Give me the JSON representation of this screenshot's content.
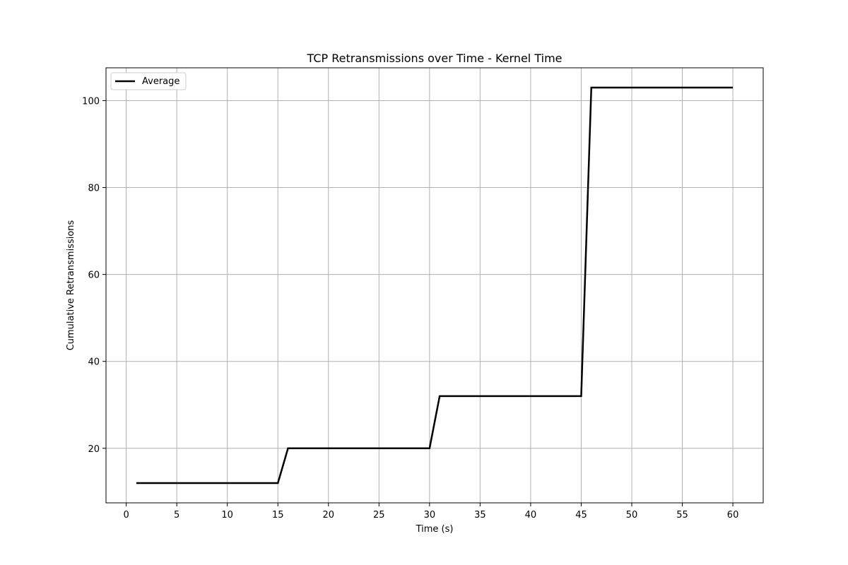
{
  "chart_data": {
    "type": "line",
    "title": "TCP Retransmissions over Time - Kernel Time",
    "xlabel": "Time (s)",
    "ylabel": "Cumulative Retransmissions",
    "xlim": [
      -2,
      63
    ],
    "ylim": [
      7.45,
      107.55
    ],
    "xticks": [
      0,
      5,
      10,
      15,
      20,
      25,
      30,
      35,
      40,
      45,
      50,
      55,
      60
    ],
    "yticks": [
      20,
      40,
      60,
      80,
      100
    ],
    "grid": true,
    "legend_position": "top-left",
    "series": [
      {
        "name": "Average",
        "color": "#000000",
        "x": [
          1,
          15,
          16,
          30,
          31,
          45,
          46,
          60
        ],
        "y": [
          12,
          12,
          20,
          20,
          32,
          32,
          103,
          103
        ]
      }
    ]
  }
}
